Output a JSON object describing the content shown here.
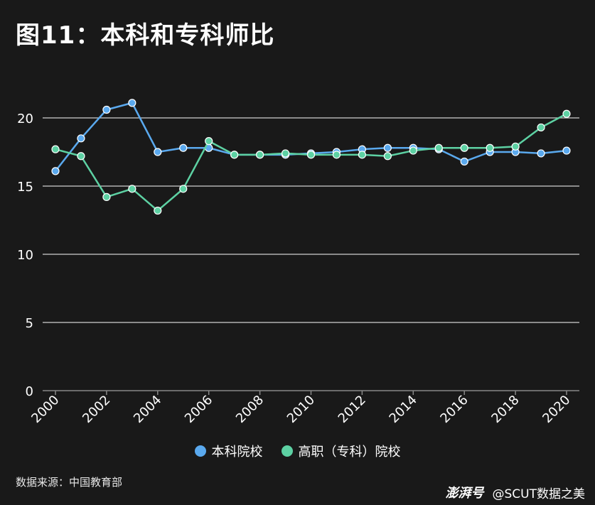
{
  "title": "图11：本科和专科师比",
  "source": "数据来源：中国教育部",
  "watermark": {
    "logo": "澎湃号",
    "account": "@SCUT数据之美"
  },
  "colors": {
    "background": "#191919",
    "grid": "#d0d0d0",
    "axis": "#888888"
  },
  "chart_data": {
    "type": "line",
    "x": [
      2000,
      2001,
      2002,
      2003,
      2004,
      2005,
      2006,
      2007,
      2008,
      2009,
      2010,
      2011,
      2012,
      2013,
      2014,
      2015,
      2016,
      2017,
      2018,
      2019,
      2020
    ],
    "xticks": [
      "2000",
      "2002",
      "2004",
      "2006",
      "2008",
      "2010",
      "2012",
      "2014",
      "2016",
      "2018",
      "2020"
    ],
    "yticks": [
      0,
      5,
      10,
      15,
      20
    ],
    "ylim": [
      0,
      22.5
    ],
    "grid": true,
    "legend_position": "bottom",
    "series": [
      {
        "name": "本科院校",
        "color": "#5aa9ee",
        "values": [
          16.1,
          18.5,
          20.6,
          21.1,
          17.5,
          17.8,
          17.8,
          17.3,
          17.3,
          17.3,
          17.4,
          17.5,
          17.7,
          17.8,
          17.8,
          17.7,
          16.8,
          17.5,
          17.5,
          17.4,
          17.6
        ]
      },
      {
        "name": "高职（专科）院校",
        "color": "#5dd1a3",
        "values": [
          17.7,
          17.2,
          14.2,
          14.8,
          13.2,
          14.8,
          18.3,
          17.3,
          17.3,
          17.4,
          17.3,
          17.3,
          17.3,
          17.2,
          17.6,
          17.8,
          17.8,
          17.8,
          17.9,
          19.3,
          20.3
        ]
      }
    ]
  }
}
